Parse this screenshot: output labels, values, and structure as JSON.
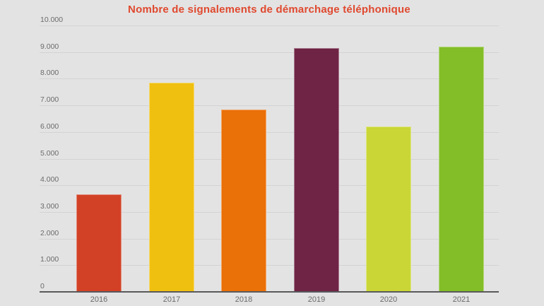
{
  "chart": {
    "background": "#e3e3e3",
    "title_color": "#e0492f",
    "gridline_color": "#d3d3d3",
    "axis_line_color": "#59595c",
    "tick_label_color": "#6b6b6b"
  },
  "chart_data": {
    "type": "bar",
    "title": "Nombre de signalements de démarchage téléphonique",
    "categories": [
      "2016",
      "2017",
      "2018",
      "2019",
      "2020",
      "2021"
    ],
    "values": [
      3650,
      7850,
      6850,
      9150,
      6200,
      9200
    ],
    "bar_colors": [
      "#d24126",
      "#f0c011",
      "#ea7008",
      "#6f2345",
      "#c9d636",
      "#83bd27"
    ],
    "xlabel": "",
    "ylabel": "",
    "ylim": [
      0,
      10000
    ],
    "ytick_step": 1000,
    "ytick_labels": [
      "0",
      "1.000",
      "2.000",
      "3.000",
      "4.000",
      "5.000",
      "6.000",
      "7.000",
      "8.000",
      "9.000",
      "10.000"
    ],
    "grid": "horizontal-only",
    "legend": "none"
  }
}
